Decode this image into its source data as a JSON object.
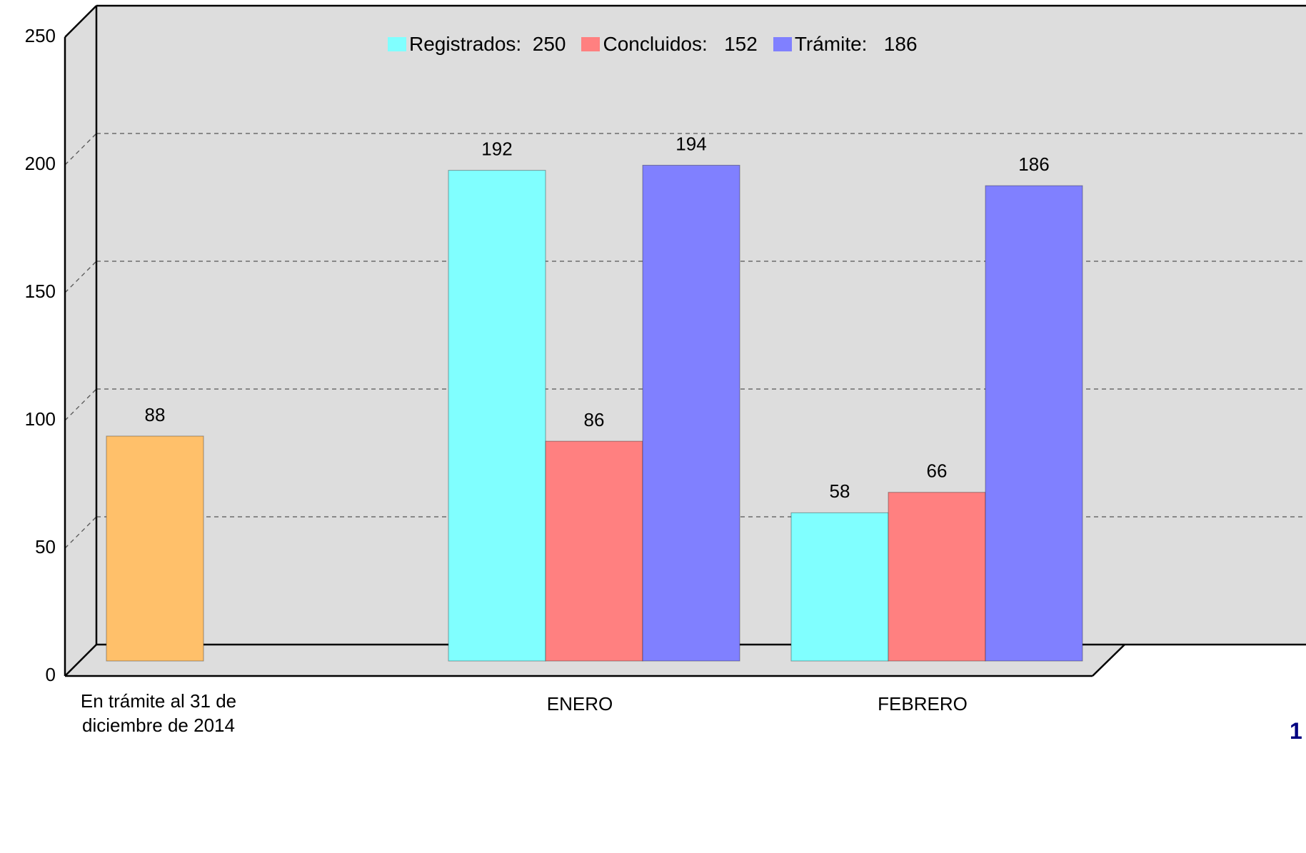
{
  "chart_data": {
    "type": "bar3d",
    "categories": [
      "En trámite al 31 de diciembre de 2014",
      "ENERO",
      "FEBRERO"
    ],
    "series": [
      {
        "color": "#FFC06A",
        "values": [
          88,
          null,
          null
        ]
      },
      {
        "name": "Registrados:  250",
        "color": "#80FFFF",
        "values": [
          null,
          192,
          58
        ]
      },
      {
        "name": "Concluidos:   152",
        "color": "#FF8080",
        "values": [
          null,
          86,
          66
        ]
      },
      {
        "name": "Trámite:   186",
        "color": "#8080FF",
        "values": [
          null,
          194,
          186
        ]
      }
    ],
    "ylim": [
      0,
      250
    ],
    "yticks": [
      0,
      50,
      100,
      150,
      200,
      250
    ],
    "grid": true,
    "legend": "top",
    "page_number": "1"
  }
}
